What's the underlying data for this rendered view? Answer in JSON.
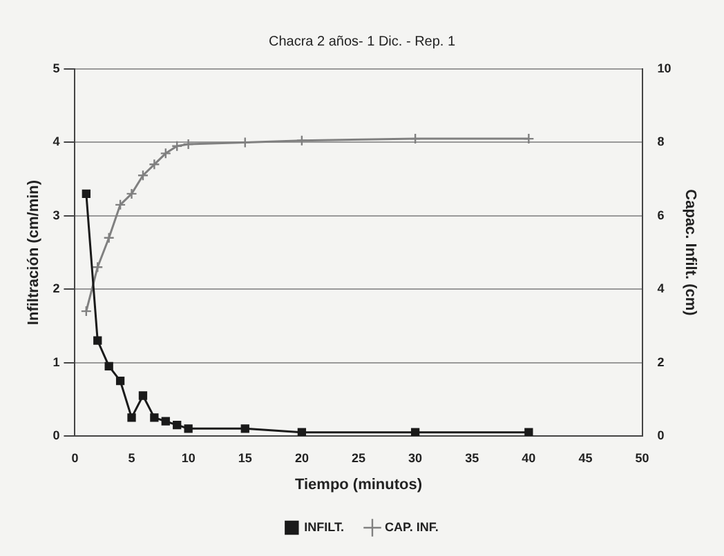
{
  "chart_data": {
    "type": "line",
    "title": "Chacra 2 años- 1 Dic. - Rep. 1",
    "xlabel": "Tiempo (minutos)",
    "ylabel": "Infiltración (cm/min)",
    "y2label": "Capac. Infilt. (cm)",
    "xlim": [
      0,
      50
    ],
    "xticks": [
      0,
      5,
      10,
      15,
      20,
      25,
      30,
      35,
      40,
      45,
      50
    ],
    "ylim": [
      0,
      5
    ],
    "yticks": [
      0,
      1,
      2,
      3,
      4,
      5
    ],
    "y2lim": [
      0,
      10
    ],
    "y2ticks": [
      0,
      2,
      4,
      6,
      8,
      10
    ],
    "grid": "y",
    "legend": "bottom",
    "line_style": "solid",
    "series": [
      {
        "name": "INFILT.",
        "color": "#1a1a1a",
        "marker": "square",
        "x": [
          1,
          2,
          3,
          4,
          5,
          6,
          7,
          8,
          9,
          10,
          15,
          20,
          30,
          40
        ],
        "values": [
          3.3,
          1.3,
          0.95,
          0.75,
          0.25,
          0.55,
          0.25,
          0.2,
          0.15,
          0.1,
          0.1,
          0.05,
          0.05,
          0.05
        ]
      },
      {
        "name": "CAP. INF.",
        "color": "#808080",
        "marker": "cross",
        "axis": "y2",
        "x": [
          1,
          2,
          3,
          4,
          5,
          6,
          7,
          8,
          9,
          10,
          15,
          20,
          30,
          40
        ],
        "values": [
          3.4,
          4.6,
          5.4,
          6.3,
          6.6,
          7.1,
          7.4,
          7.7,
          7.9,
          7.95,
          8,
          8.05,
          8.1,
          8.1
        ]
      }
    ]
  }
}
